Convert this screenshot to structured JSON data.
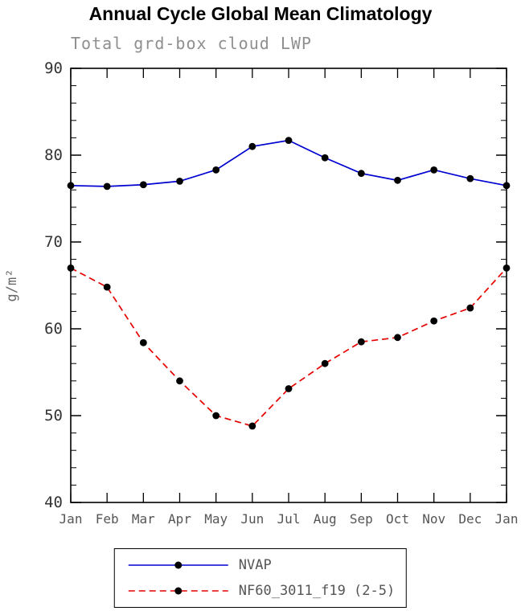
{
  "chart_data": {
    "type": "line",
    "title": "Annual Cycle Global Mean Climatology",
    "subtitle": "Total grd-box cloud LWP",
    "xlabel": "",
    "ylabel": "g/m²",
    "ylim": [
      40,
      90
    ],
    "ytick_major": 10,
    "ytick_minor": 2,
    "grid": false,
    "frame": true,
    "legend_position": "bottom",
    "marker": "filled-circle",
    "marker_color": "#000000",
    "categories": [
      "Jan",
      "Feb",
      "Mar",
      "Apr",
      "May",
      "Jun",
      "Jul",
      "Aug",
      "Sep",
      "Oct",
      "Nov",
      "Dec",
      "Jan"
    ],
    "series": [
      {
        "name": "NVAP",
        "color": "#0000d0",
        "style": "solid",
        "dash": "",
        "values": [
          76.5,
          76.4,
          76.6,
          77.0,
          78.3,
          81.0,
          81.7,
          79.7,
          77.9,
          77.1,
          78.3,
          77.3,
          76.5
        ]
      },
      {
        "name": "NF60_3011_f19 (2-5)",
        "color": "#e60000",
        "style": "dashed",
        "dash": "8 5",
        "values": [
          67.0,
          64.8,
          58.4,
          54.0,
          50.0,
          48.8,
          53.1,
          56.0,
          58.5,
          59.0,
          60.9,
          62.4,
          67.0
        ]
      }
    ]
  }
}
